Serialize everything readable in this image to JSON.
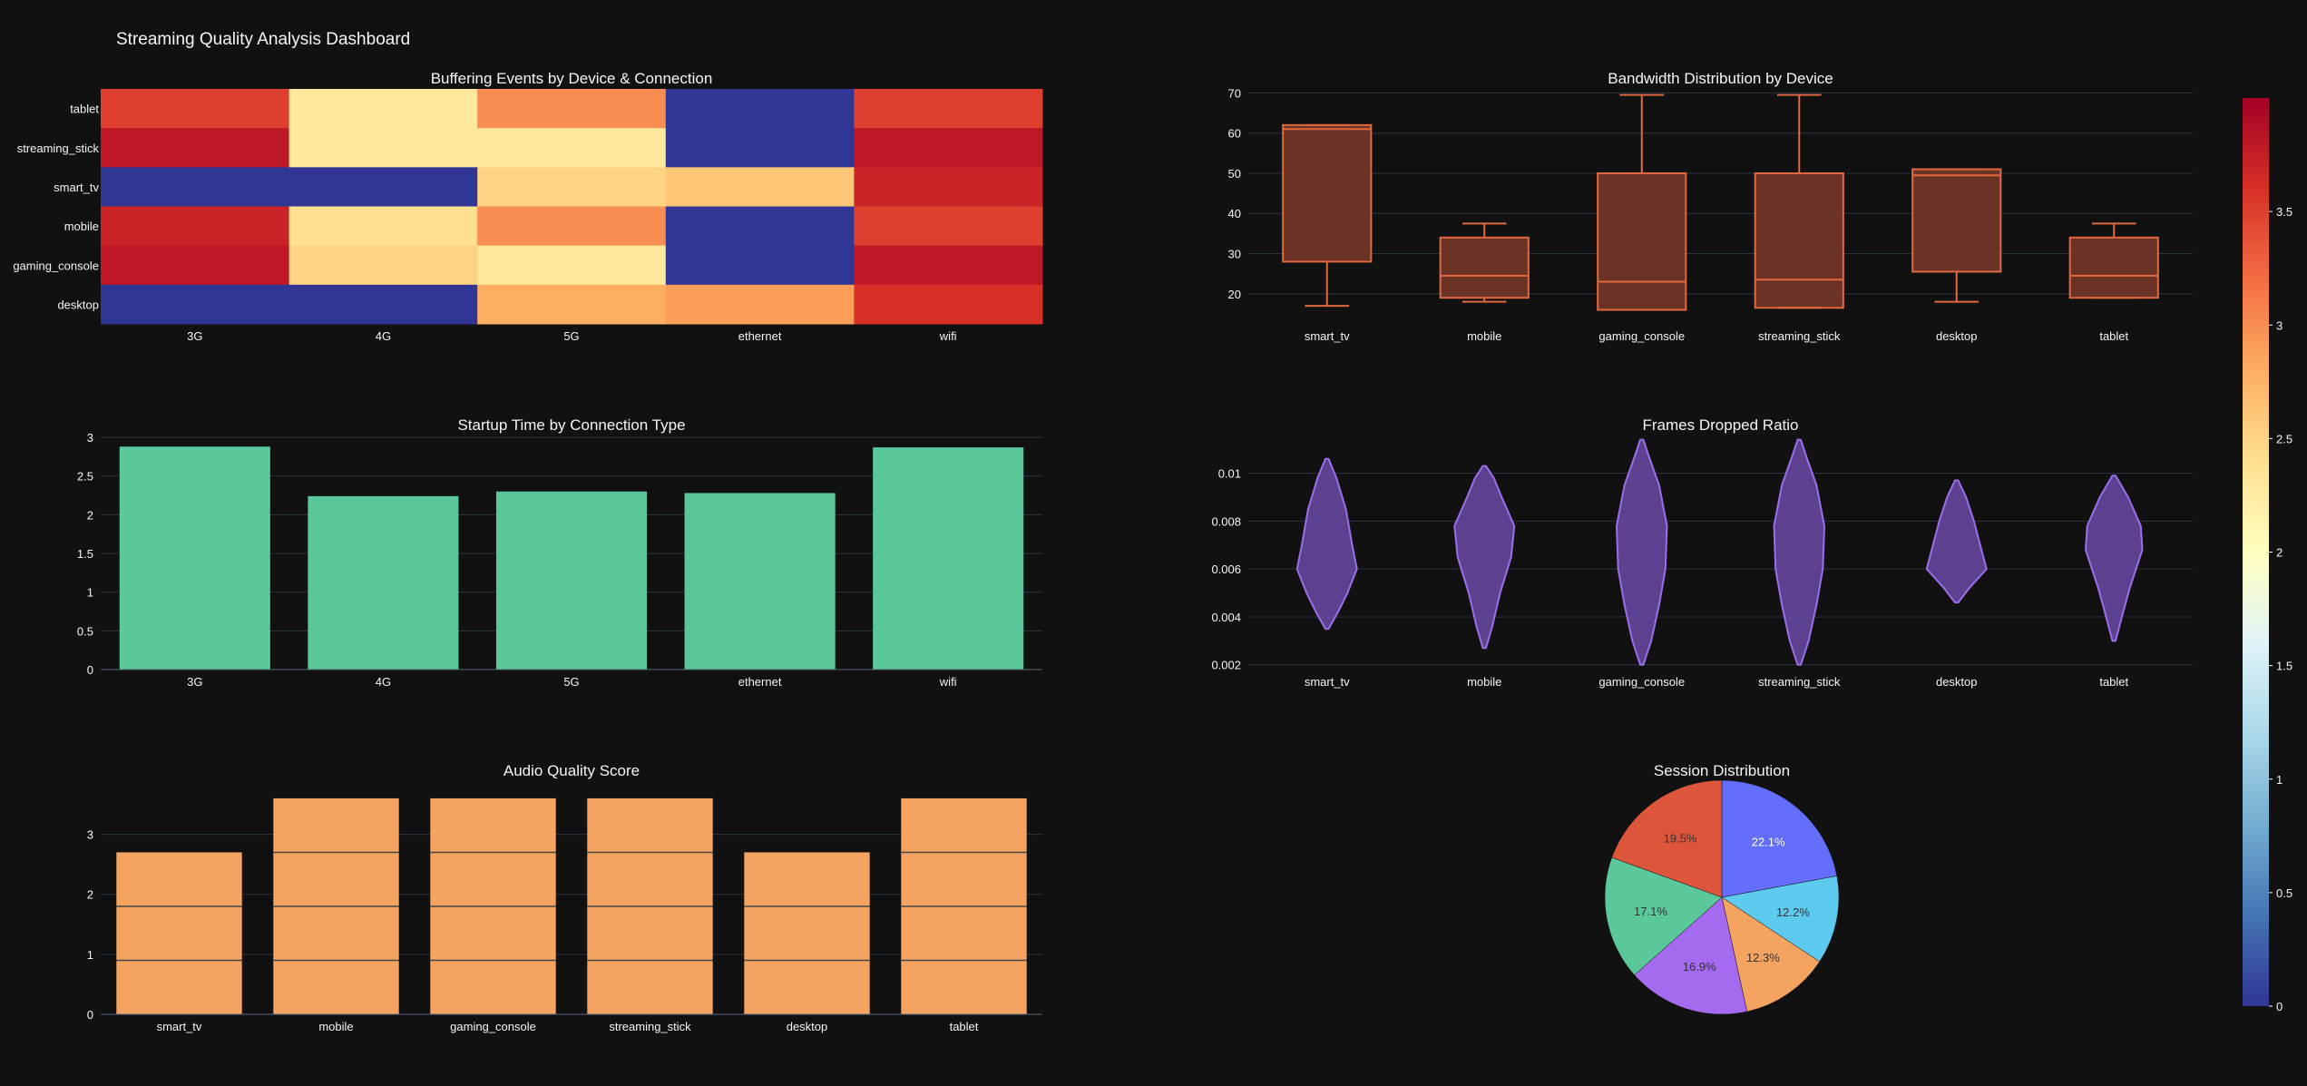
{
  "dashboard": {
    "title": "Streaming Quality Analysis Dashboard"
  },
  "colors": {
    "background": "#111111",
    "text": "#f2f5fa",
    "grid": "#283442",
    "bar_startup": "#5ac89a",
    "bar_audio": "#f4a460",
    "box": "#e1693f",
    "box_fill": "#7a3a2a",
    "violin": "#9b6fe8",
    "violin_fill": "#6a4aa8",
    "pie": [
      "#636efa",
      "#5dcbf0",
      "#f4a460",
      "#a46af0",
      "#5ac89a",
      "#dd563c"
    ]
  },
  "chart_data": [
    {
      "id": "heatmap",
      "type": "heatmap",
      "title": "Buffering Events by Device & Connection",
      "x": [
        "3G",
        "4G",
        "5G",
        "ethernet",
        "wifi"
      ],
      "y": [
        "tablet",
        "streaming_stick",
        "smart_tv",
        "mobile",
        "gaming_console",
        "desktop"
      ],
      "z": [
        [
          3.5,
          2.3,
          3.0,
          0,
          3.5
        ],
        [
          3.8,
          2.3,
          2.3,
          0,
          3.8
        ],
        [
          0,
          0,
          2.5,
          2.6,
          3.7
        ],
        [
          3.7,
          2.4,
          3.0,
          0,
          3.5
        ],
        [
          3.8,
          2.5,
          2.3,
          0,
          3.8
        ],
        [
          0,
          0,
          2.8,
          2.9,
          3.6
        ]
      ],
      "zmin": 0,
      "zmax": 4,
      "colorbar": {
        "ticks": [
          0,
          0.5,
          1,
          1.5,
          2,
          2.5,
          3,
          3.5
        ]
      }
    },
    {
      "id": "box",
      "type": "box",
      "title": "Bandwidth Distribution by Device",
      "categories": [
        "smart_tv",
        "mobile",
        "gaming_console",
        "streaming_stick",
        "desktop",
        "tablet"
      ],
      "ylim": [
        12.5,
        71
      ],
      "yticks": [
        20,
        30,
        40,
        50,
        60,
        70
      ],
      "boxes": [
        {
          "min": 17,
          "q1": 28,
          "median": 61,
          "q3": 62,
          "max": 62
        },
        {
          "min": 18,
          "q1": 19,
          "median": 24.5,
          "q3": 34,
          "max": 37.5
        },
        {
          "min": 16,
          "q1": 16,
          "median": 23,
          "q3": 50,
          "max": 69.5
        },
        {
          "min": 16.5,
          "q1": 16.5,
          "median": 23.5,
          "q3": 50,
          "max": 69.5
        },
        {
          "min": 18,
          "q1": 25.5,
          "median": 49.5,
          "q3": 51,
          "max": 51
        },
        {
          "min": 19,
          "q1": 19,
          "median": 24.5,
          "q3": 34,
          "max": 37.5
        }
      ]
    },
    {
      "id": "startup",
      "type": "bar",
      "title": "Startup Time by Connection Type",
      "categories": [
        "3G",
        "4G",
        "5G",
        "ethernet",
        "wifi"
      ],
      "values": [
        2.88,
        2.24,
        2.3,
        2.28,
        2.87
      ],
      "ylim": [
        0,
        3
      ],
      "yticks": [
        0,
        0.5,
        1,
        1.5,
        2,
        2.5,
        3
      ]
    },
    {
      "id": "violin",
      "type": "violin",
      "title": "Frames Dropped Ratio",
      "categories": [
        "smart_tv",
        "mobile",
        "gaming_console",
        "streaming_stick",
        "desktop",
        "tablet"
      ],
      "ylim": [
        0.0018,
        0.0115
      ],
      "yticks": [
        0.002,
        0.004,
        0.006,
        0.008,
        0.01
      ],
      "ytick_labels": [
        "0.002",
        "0.004",
        "0.006",
        "0.008",
        "0.01"
      ],
      "violins": [
        {
          "min": 0.0035,
          "max": 0.0106,
          "profile": [
            [
              0.0035,
              0.05
            ],
            [
              0.0042,
              0.35
            ],
            [
              0.005,
              0.65
            ],
            [
              0.006,
              0.95
            ],
            [
              0.007,
              0.8
            ],
            [
              0.0085,
              0.6
            ],
            [
              0.0098,
              0.3
            ],
            [
              0.0106,
              0.05
            ]
          ]
        },
        {
          "min": 0.0027,
          "max": 0.0103,
          "profile": [
            [
              0.0027,
              0.05
            ],
            [
              0.0036,
              0.25
            ],
            [
              0.005,
              0.5
            ],
            [
              0.0065,
              0.85
            ],
            [
              0.0078,
              0.95
            ],
            [
              0.009,
              0.55
            ],
            [
              0.0098,
              0.3
            ],
            [
              0.0103,
              0.05
            ]
          ]
        },
        {
          "min": 0.002,
          "max": 0.0114,
          "profile": [
            [
              0.002,
              0.05
            ],
            [
              0.003,
              0.3
            ],
            [
              0.0045,
              0.55
            ],
            [
              0.006,
              0.75
            ],
            [
              0.0078,
              0.8
            ],
            [
              0.0095,
              0.55
            ],
            [
              0.0108,
              0.2
            ],
            [
              0.0114,
              0.05
            ]
          ]
        },
        {
          "min": 0.002,
          "max": 0.0114,
          "profile": [
            [
              0.002,
              0.05
            ],
            [
              0.003,
              0.3
            ],
            [
              0.0045,
              0.55
            ],
            [
              0.006,
              0.75
            ],
            [
              0.0078,
              0.8
            ],
            [
              0.0095,
              0.55
            ],
            [
              0.0108,
              0.2
            ],
            [
              0.0114,
              0.05
            ]
          ]
        },
        {
          "min": 0.0046,
          "max": 0.0097,
          "profile": [
            [
              0.0046,
              0.05
            ],
            [
              0.0052,
              0.4
            ],
            [
              0.006,
              0.95
            ],
            [
              0.007,
              0.75
            ],
            [
              0.008,
              0.55
            ],
            [
              0.009,
              0.3
            ],
            [
              0.0097,
              0.05
            ]
          ]
        },
        {
          "min": 0.003,
          "max": 0.0099,
          "profile": [
            [
              0.003,
              0.05
            ],
            [
              0.004,
              0.25
            ],
            [
              0.0052,
              0.5
            ],
            [
              0.0068,
              0.9
            ],
            [
              0.0078,
              0.85
            ],
            [
              0.009,
              0.45
            ],
            [
              0.0099,
              0.05
            ]
          ]
        }
      ]
    },
    {
      "id": "audio",
      "type": "bar",
      "title": "Audio Quality Score",
      "categories": [
        "smart_tv",
        "mobile",
        "gaming_console",
        "streaming_stick",
        "desktop",
        "tablet"
      ],
      "values": [
        2.7,
        3.6,
        3.6,
        3.6,
        2.7,
        3.6
      ],
      "segment": 0.9,
      "ylim": [
        0,
        3.75
      ],
      "yticks": [
        0,
        1,
        2,
        3
      ]
    },
    {
      "id": "pie",
      "type": "pie",
      "title": "Session Distribution",
      "values": [
        22.1,
        12.2,
        12.3,
        16.9,
        17.1,
        19.5
      ],
      "labels": [
        "22.1%",
        "12.2%",
        "12.3%",
        "16.9%",
        "17.1%",
        "19.5%"
      ]
    }
  ]
}
